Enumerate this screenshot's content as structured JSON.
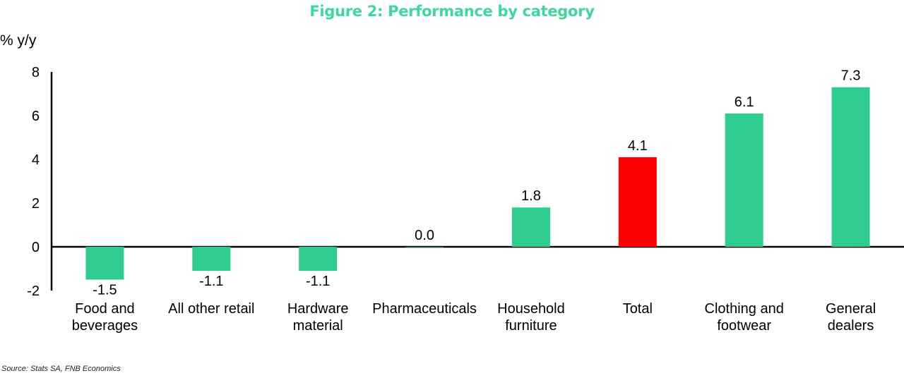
{
  "chart_data": {
    "type": "bar",
    "title": "Figure 2: Performance by category",
    "ylabel": "% y/y",
    "ylim": [
      -2,
      8
    ],
    "yticks": [
      "-2",
      "0",
      "2",
      "4",
      "6",
      "8"
    ],
    "categories": [
      [
        "Food and",
        "beverages"
      ],
      [
        "All other retail"
      ],
      [
        "Hardware",
        "material"
      ],
      [
        "Pharmaceuticals"
      ],
      [
        "Household",
        "furniture"
      ],
      [
        "Total"
      ],
      [
        "Clothing and",
        "footwear"
      ],
      [
        "General",
        "dealers"
      ]
    ],
    "values": [
      -1.5,
      -1.1,
      -1.1,
      0.0,
      1.8,
      4.1,
      6.1,
      7.3
    ],
    "value_labels": [
      "-1.5",
      "-1.1",
      "-1.1",
      "0.0",
      "1.8",
      "4.1",
      "6.1",
      "7.3"
    ],
    "colors": [
      "#2ecc8f",
      "#2ecc8f",
      "#2ecc8f",
      "#2ecc8f",
      "#2ecc8f",
      "#ff0000",
      "#2ecc8f",
      "#2ecc8f"
    ],
    "grid": false,
    "legend": "none"
  },
  "title_color": "#3dd99a",
  "source": "Source: Stats SA, FNB Economics"
}
